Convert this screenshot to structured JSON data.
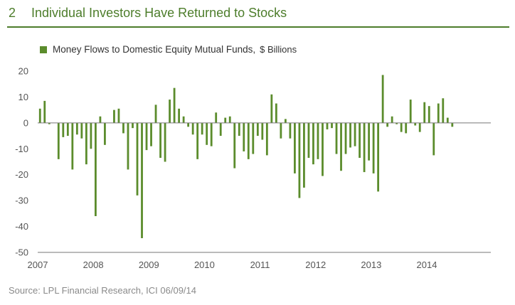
{
  "header": {
    "figure_number": "2",
    "title": "Individual Investors Have Returned to Stocks"
  },
  "legend": {
    "series_label": "Money Flows to Domestic Equity Mutual Funds,",
    "units": "$ Billions"
  },
  "source": "Source: LPL Financial Research, ICI   06/09/14",
  "colors": {
    "accent": "#4d7d2b",
    "bar": "#5b8c2c",
    "axis": "#555555"
  },
  "chart_data": {
    "type": "bar",
    "title": "Money Flows to Domestic Equity Mutual Funds,",
    "ylabel": "$ Billions",
    "ylim": [
      -50,
      20
    ],
    "yticks": [
      20,
      10,
      0,
      -10,
      -20,
      -30,
      -40,
      -50
    ],
    "x_tick_labels": [
      "2007",
      "2008",
      "2009",
      "2010",
      "2011",
      "2012",
      "2013",
      "2014"
    ],
    "x_start": "2007-01",
    "frequency": "monthly",
    "grid": false,
    "series": [
      {
        "name": "Money Flows to Domestic Equity Mutual Funds",
        "values": [
          5.5,
          8.5,
          -0.5,
          0,
          -14,
          -5.5,
          -5,
          -18,
          -4.5,
          -6,
          -16,
          -10,
          -36,
          2.5,
          -8.5,
          0,
          5,
          5.5,
          -4,
          -18,
          -2,
          -28,
          -44.5,
          -10.5,
          -9,
          7,
          -13.5,
          -15,
          9,
          13.5,
          5.5,
          2.5,
          -1.5,
          -4.5,
          -14,
          -4.5,
          -8.5,
          -9,
          4,
          -5,
          2,
          2.5,
          -17.5,
          -5,
          -11,
          -14,
          -12,
          -5,
          -6.5,
          -12.5,
          11,
          7.5,
          -6,
          1.5,
          -6,
          -19.5,
          -29,
          -25,
          -13.5,
          -16,
          -14,
          -20.5,
          -2.5,
          -2,
          -12,
          -18.5,
          -12,
          -9.5,
          -9,
          -13.5,
          -19,
          -14.5,
          -19.5,
          -26.5,
          18.5,
          -1.5,
          2.5,
          -0.5,
          -3.5,
          -4,
          9,
          -1,
          -3.5,
          8,
          6.5,
          -12.5,
          7.5,
          9.5,
          2,
          -1.5
        ]
      }
    ]
  }
}
